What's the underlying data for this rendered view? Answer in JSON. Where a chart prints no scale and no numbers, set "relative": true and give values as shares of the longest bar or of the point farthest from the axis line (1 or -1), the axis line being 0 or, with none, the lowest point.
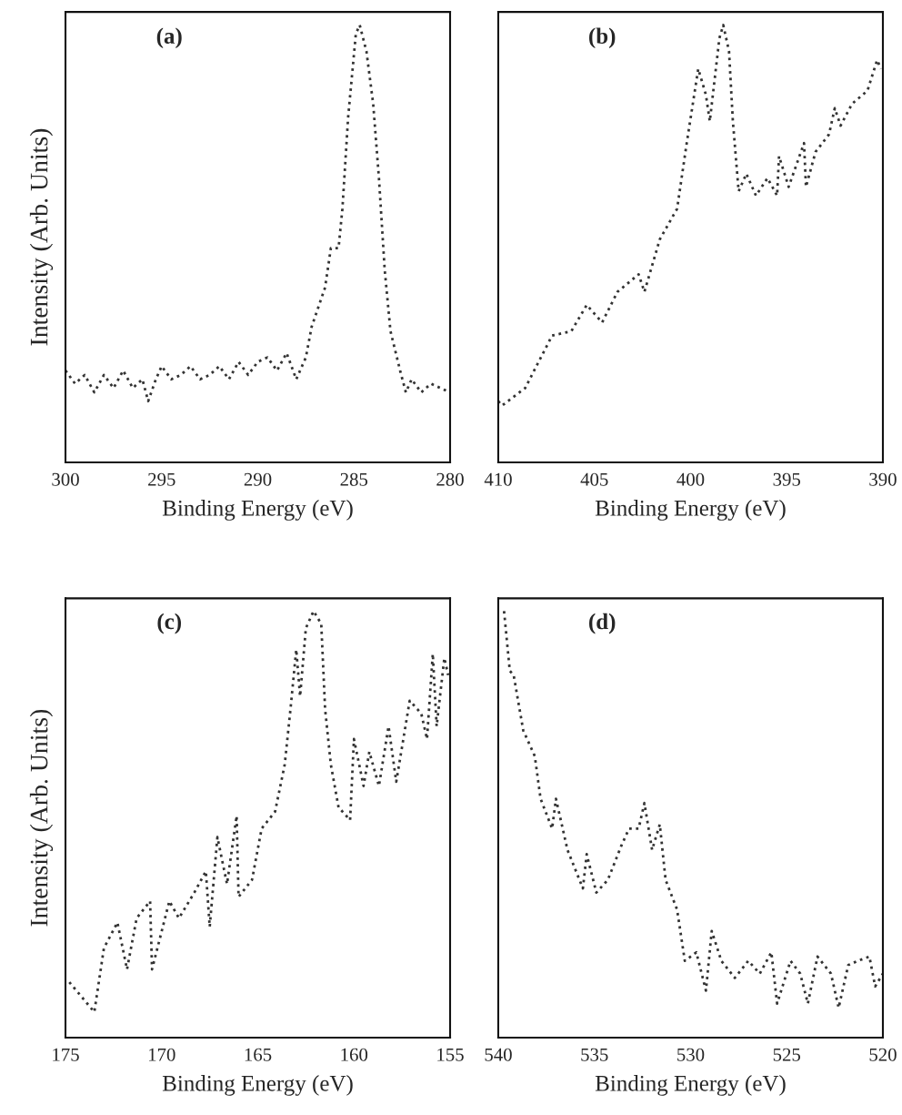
{
  "chart_data": [
    {
      "type": "line",
      "xlabel": "Binding Energy (eV)",
      "ylabel": "Intensity (Arb. Units)",
      "annotations": [
        "(a)"
      ],
      "relative": true,
      "tick_labels": "x",
      "grid": false,
      "line_style": "dotted",
      "marker": "none",
      "xlim": [
        300,
        280
      ],
      "xticks": [
        300,
        295,
        290,
        285,
        280
      ],
      "series": [
        {
          "color": "#333333",
          "x": [
            300,
            299.5,
            299,
            298.5,
            298,
            297.5,
            297,
            296.5,
            296,
            295.7,
            295.3,
            295,
            294.5,
            294,
            293.5,
            293,
            292.5,
            292,
            291.5,
            291,
            290.5,
            290,
            289.5,
            289,
            288.5,
            288,
            287.5,
            287.2,
            286.5,
            286.2,
            285.8,
            285.6,
            285.3,
            284.9,
            284.7,
            284.35,
            284.0,
            283.7,
            283.4,
            283.1,
            282.6,
            282.3,
            282,
            281.5,
            281,
            280.5,
            280
          ],
          "values": [
            0.21,
            0.18,
            0.2,
            0.16,
            0.2,
            0.17,
            0.21,
            0.17,
            0.19,
            0.14,
            0.19,
            0.22,
            0.19,
            0.2,
            0.22,
            0.19,
            0.2,
            0.22,
            0.19,
            0.23,
            0.2,
            0.23,
            0.24,
            0.21,
            0.25,
            0.19,
            0.24,
            0.31,
            0.4,
            0.49,
            0.49,
            0.58,
            0.79,
            0.98,
            1.0,
            0.94,
            0.82,
            0.65,
            0.44,
            0.3,
            0.21,
            0.16,
            0.19,
            0.16,
            0.18,
            0.17,
            0.16
          ]
        }
      ]
    },
    {
      "type": "line",
      "xlabel": "Binding Energy (eV)",
      "annotations": [
        "(b)"
      ],
      "relative": true,
      "tick_labels": "x",
      "grid": false,
      "line_style": "dotted",
      "marker": "none",
      "xlim": [
        410,
        390
      ],
      "xticks": [
        410,
        405,
        400,
        395,
        390
      ],
      "series": [
        {
          "color": "#333333",
          "x": [
            410,
            409.8,
            408.6,
            407.2,
            406.2,
            405.4,
            404.6,
            403.8,
            402.7,
            402.4,
            401.6,
            400.7,
            400.2,
            399.6,
            399.2,
            399.0,
            398.5,
            398.3,
            398.0,
            397.8,
            397.5,
            397.1,
            396.6,
            396.0,
            395.5,
            395.4,
            394.9,
            394.1,
            394.0,
            393.5,
            392.8,
            392.5,
            392.2,
            391.6,
            390.8,
            390.3,
            390.1
          ],
          "values": [
            0.14,
            0.13,
            0.17,
            0.29,
            0.3,
            0.36,
            0.32,
            0.39,
            0.43,
            0.39,
            0.51,
            0.58,
            0.73,
            0.9,
            0.84,
            0.78,
            0.97,
            1.0,
            0.94,
            0.78,
            0.62,
            0.66,
            0.61,
            0.65,
            0.61,
            0.7,
            0.63,
            0.73,
            0.63,
            0.71,
            0.75,
            0.81,
            0.77,
            0.82,
            0.85,
            0.92,
            0.9
          ]
        }
      ]
    },
    {
      "type": "line",
      "xlabel": "Binding Energy (eV)",
      "ylabel": "Intensity (Arb. Units)",
      "annotations": [
        "(c)"
      ],
      "relative": true,
      "tick_labels": "x",
      "grid": false,
      "line_style": "dotted",
      "marker": "none",
      "xlim": [
        175,
        155
      ],
      "xticks": [
        175,
        170,
        165,
        160,
        155
      ],
      "series": [
        {
          "color": "#333333",
          "x": [
            174.8,
            173.5,
            173.0,
            172.3,
            171.8,
            171.3,
            170.6,
            170.5,
            169.6,
            169.1,
            168.3,
            167.7,
            167.5,
            167.1,
            166.6,
            166.1,
            166.0,
            165.3,
            164.8,
            164.1,
            163.6,
            163.3,
            163.0,
            162.8,
            162.5,
            162.1,
            161.7,
            161.5,
            161.2,
            160.8,
            160.2,
            160.0,
            159.5,
            159.2,
            158.7,
            158.2,
            157.8,
            157.1,
            156.5,
            156.2,
            155.9,
            155.7,
            155.3,
            155.1
          ],
          "values": [
            0.13,
            0.06,
            0.21,
            0.27,
            0.16,
            0.28,
            0.32,
            0.16,
            0.32,
            0.28,
            0.34,
            0.39,
            0.26,
            0.47,
            0.36,
            0.52,
            0.33,
            0.37,
            0.49,
            0.53,
            0.64,
            0.77,
            0.91,
            0.8,
            0.96,
            1.0,
            0.97,
            0.77,
            0.64,
            0.54,
            0.51,
            0.7,
            0.59,
            0.67,
            0.59,
            0.73,
            0.6,
            0.79,
            0.76,
            0.7,
            0.9,
            0.73,
            0.89,
            0.85
          ]
        }
      ]
    },
    {
      "type": "line",
      "xlabel": "Binding Energy (eV)",
      "annotations": [
        "(d)"
      ],
      "relative": true,
      "tick_labels": "x",
      "grid": false,
      "line_style": "dotted",
      "marker": "none",
      "xlim": [
        540,
        520
      ],
      "xticks": [
        540,
        535,
        530,
        525,
        520
      ],
      "series": [
        {
          "color": "#333333",
          "x": [
            539.7,
            539.4,
            539.2,
            538.7,
            538.1,
            537.8,
            537.2,
            537.0,
            536.4,
            535.6,
            535.4,
            534.9,
            534.3,
            533.6,
            533.2,
            532.7,
            532.4,
            532.0,
            531.6,
            531.3,
            530.7,
            530.3,
            529.7,
            529.2,
            528.9,
            528.4,
            527.7,
            527.0,
            526.4,
            525.8,
            525.5,
            524.8,
            524.3,
            523.9,
            523.4,
            522.7,
            522.3,
            521.8,
            521.3,
            520.7,
            520.4,
            520.0
          ],
          "values": [
            1.0,
            0.86,
            0.85,
            0.72,
            0.66,
            0.56,
            0.49,
            0.56,
            0.44,
            0.35,
            0.43,
            0.34,
            0.37,
            0.45,
            0.49,
            0.49,
            0.55,
            0.44,
            0.5,
            0.37,
            0.3,
            0.18,
            0.2,
            0.11,
            0.25,
            0.18,
            0.14,
            0.18,
            0.15,
            0.2,
            0.08,
            0.18,
            0.15,
            0.08,
            0.19,
            0.15,
            0.07,
            0.17,
            0.18,
            0.19,
            0.12,
            0.15
          ]
        }
      ]
    }
  ]
}
